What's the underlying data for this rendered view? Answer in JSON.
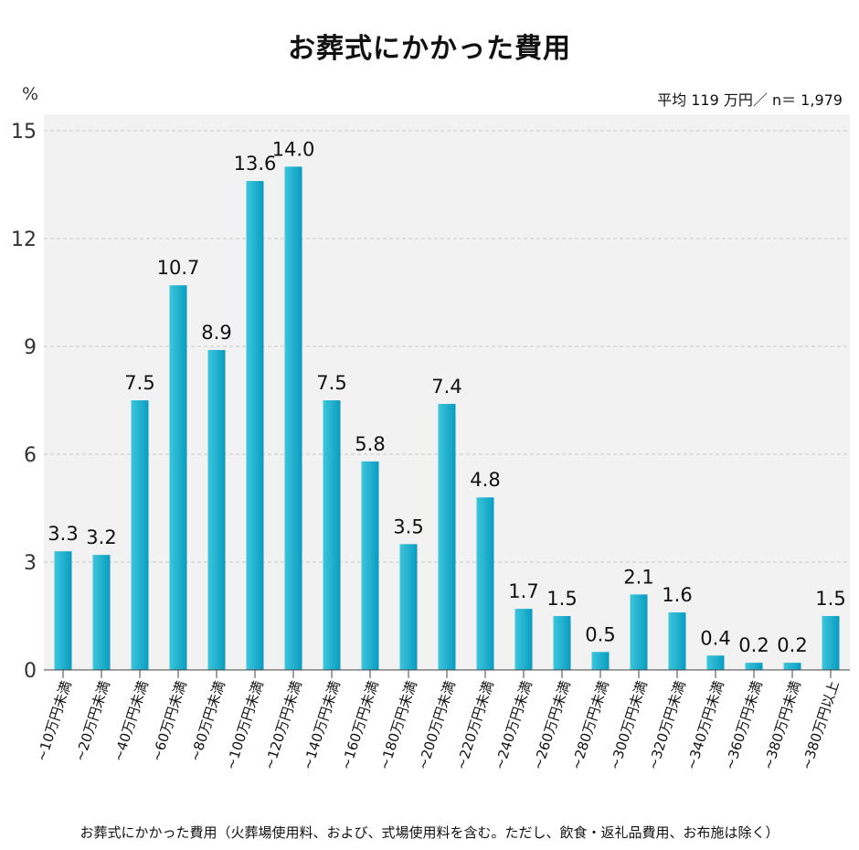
{
  "chart_data": {
    "type": "bar",
    "title": "お葬式にかかった費用",
    "ylabel": "%",
    "subtitle": "平均 119 万円／ n＝ 1,979",
    "footnote": "お葬式にかかった費用（火葬場使用料、および、式場使用料を含む。ただし、飲食・返礼品費用、お布施は除く）",
    "ylim": [
      0,
      15
    ],
    "yticks": [
      "0",
      "3",
      "6",
      "9",
      "12",
      "15"
    ],
    "grid": true,
    "categories": [
      "~10万円未満",
      "~20万円未満",
      "~40万円未満",
      "~60万円未満",
      "~80万円未満",
      "~100万円未満",
      "~120万円未満",
      "~140万円未満",
      "~160万円未満",
      "~180万円未満",
      "~200万円未満",
      "~220万円未満",
      "~240万円未満",
      "~260万円未満",
      "~280万円未満",
      "~300万円未満",
      "~320万円未満",
      "~340万円未満",
      "~360万円未満",
      "~380万円未満",
      "~380万円以上"
    ],
    "values": [
      3.3,
      3.2,
      7.5,
      10.7,
      8.9,
      13.6,
      14.0,
      7.5,
      5.8,
      3.5,
      7.4,
      4.8,
      1.7,
      1.5,
      0.5,
      2.1,
      1.6,
      0.4,
      0.2,
      0.2,
      1.5
    ],
    "value_labels": [
      "3.3",
      "3.2",
      "7.5",
      "10.7",
      "8.9",
      "13.6",
      "14.0",
      "7.5",
      "5.8",
      "3.5",
      "7.4",
      "4.8",
      "1.7",
      "1.5",
      "0.5",
      "2.1",
      "1.6",
      "0.4",
      "0.2",
      "0.2",
      "1.5"
    ],
    "colors": {
      "bar_light": "#3cc6dd",
      "bar_dark": "#0a9cc0",
      "plot_bg": "#f2f2f2",
      "grid": "#c8c8c8"
    }
  }
}
